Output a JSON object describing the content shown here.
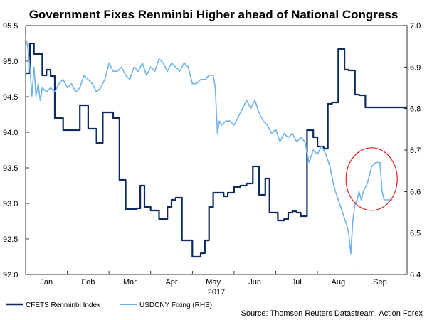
{
  "chart_data": {
    "type": "line",
    "title": "Government Fixes Renminbi Higher ahead of National Congress",
    "source": "Source: Thomson Reuters Datastream, Action Forex",
    "year_label": "2017",
    "x_tick_labels": [
      "Jan",
      "Feb",
      "Mar",
      "Apr",
      "May",
      "Jun",
      "Jul",
      "Aug",
      "Sep"
    ],
    "x_range": [
      0,
      9.15
    ],
    "y_left": {
      "min": 92.0,
      "max": 95.5,
      "ticks": [
        "92.0",
        "92.5",
        "93.0",
        "93.5",
        "94.0",
        "94.5",
        "95.0",
        "95.5"
      ]
    },
    "y_right": {
      "min": 6.4,
      "max": 7.0,
      "ticks": [
        "6.4",
        "6.5",
        "6.6",
        "6.7",
        "6.8",
        "6.9",
        "7.0"
      ]
    },
    "grid": false,
    "legend_position": "bottom-left",
    "annotation": {
      "type": "circle",
      "color": "#e02020",
      "x": 8.3,
      "y_right": 6.63
    },
    "series": [
      {
        "name": "CFETS Renminbi Index",
        "axis": "left",
        "color": "#0d2b5c",
        "step": true,
        "x": [
          0.0,
          0.1,
          0.2,
          0.4,
          0.5,
          0.6,
          0.7,
          0.8,
          0.9,
          1.0,
          1.3,
          1.5,
          1.7,
          1.85,
          2.0,
          2.1,
          2.25,
          2.4,
          2.5,
          2.65,
          2.75,
          2.85,
          3.0,
          3.2,
          3.4,
          3.5,
          3.6,
          3.75,
          3.85,
          4.0,
          4.2,
          4.3,
          4.4,
          4.5,
          4.75,
          4.85,
          5.0,
          5.15,
          5.3,
          5.45,
          5.6,
          5.75,
          5.85,
          6.05,
          6.2,
          6.3,
          6.4,
          6.5,
          6.6,
          6.75,
          6.9,
          7.0,
          7.15,
          7.25,
          7.35,
          7.5,
          7.65,
          7.75,
          7.9,
          8.0,
          8.15,
          8.25,
          8.45,
          8.65,
          9.15
        ],
        "y": [
          94.83,
          95.25,
          95.1,
          94.8,
          94.88,
          94.79,
          94.2,
          94.2,
          94.03,
          94.03,
          94.38,
          94.05,
          93.85,
          94.28,
          94.28,
          94.2,
          93.33,
          92.92,
          92.92,
          92.93,
          93.25,
          92.95,
          92.9,
          92.78,
          92.95,
          93.05,
          93.08,
          92.48,
          92.48,
          92.25,
          92.3,
          92.48,
          92.95,
          93.15,
          93.1,
          93.15,
          93.23,
          93.25,
          93.28,
          93.52,
          93.12,
          93.35,
          92.87,
          92.76,
          92.78,
          92.87,
          92.89,
          92.87,
          92.82,
          94.03,
          93.93,
          93.8,
          93.77,
          94.4,
          94.42,
          95.17,
          94.88,
          94.87,
          94.53,
          94.52,
          94.35,
          94.35,
          94.35,
          94.35,
          94.35
        ]
      },
      {
        "name": "USDCNY Fixing (RHS)",
        "axis": "right",
        "color": "#6fb3ea",
        "step": false,
        "x": [
          0.0,
          0.05,
          0.1,
          0.15,
          0.2,
          0.25,
          0.3,
          0.35,
          0.4,
          0.5,
          0.6,
          0.7,
          0.8,
          0.9,
          1.0,
          1.1,
          1.2,
          1.3,
          1.4,
          1.5,
          1.6,
          1.7,
          1.8,
          1.9,
          2.0,
          2.1,
          2.2,
          2.3,
          2.4,
          2.5,
          2.6,
          2.7,
          2.8,
          2.9,
          3.0,
          3.1,
          3.2,
          3.3,
          3.4,
          3.5,
          3.6,
          3.7,
          3.8,
          3.9,
          4.0,
          4.1,
          4.2,
          4.3,
          4.4,
          4.5,
          4.55,
          4.6,
          4.65,
          4.7,
          4.8,
          4.9,
          5.0,
          5.1,
          5.2,
          5.3,
          5.4,
          5.5,
          5.6,
          5.7,
          5.8,
          5.9,
          6.0,
          6.1,
          6.2,
          6.3,
          6.4,
          6.5,
          6.6,
          6.7,
          6.8,
          6.9,
          7.0,
          7.1,
          7.2,
          7.3,
          7.4,
          7.5,
          7.6,
          7.7,
          7.75,
          7.8,
          7.85,
          7.9,
          7.95,
          8.0,
          8.05,
          8.1,
          8.2,
          8.3,
          8.4,
          8.5,
          8.55,
          8.6,
          8.7,
          8.8
        ],
        "y": [
          6.97,
          6.95,
          6.9,
          6.83,
          6.9,
          6.83,
          6.86,
          6.82,
          6.85,
          6.84,
          6.85,
          6.84,
          6.86,
          6.87,
          6.85,
          6.86,
          6.84,
          6.85,
          6.88,
          6.87,
          6.86,
          6.84,
          6.85,
          6.87,
          6.91,
          6.89,
          6.89,
          6.9,
          6.88,
          6.87,
          6.9,
          6.89,
          6.91,
          6.88,
          6.9,
          6.89,
          6.92,
          6.91,
          6.89,
          6.91,
          6.9,
          6.89,
          6.91,
          6.9,
          6.86,
          6.86,
          6.87,
          6.87,
          6.88,
          6.88,
          6.85,
          6.74,
          6.77,
          6.76,
          6.77,
          6.77,
          6.76,
          6.78,
          6.8,
          6.82,
          6.8,
          6.82,
          6.79,
          6.77,
          6.76,
          6.74,
          6.75,
          6.72,
          6.74,
          6.73,
          6.74,
          6.72,
          6.73,
          6.72,
          6.67,
          6.7,
          6.69,
          6.71,
          6.69,
          6.66,
          6.61,
          6.58,
          6.55,
          6.52,
          6.5,
          6.45,
          6.53,
          6.57,
          6.58,
          6.6,
          6.58,
          6.6,
          6.62,
          6.66,
          6.67,
          6.67,
          6.6,
          6.58,
          6.58,
          6.58
        ]
      }
    ]
  }
}
